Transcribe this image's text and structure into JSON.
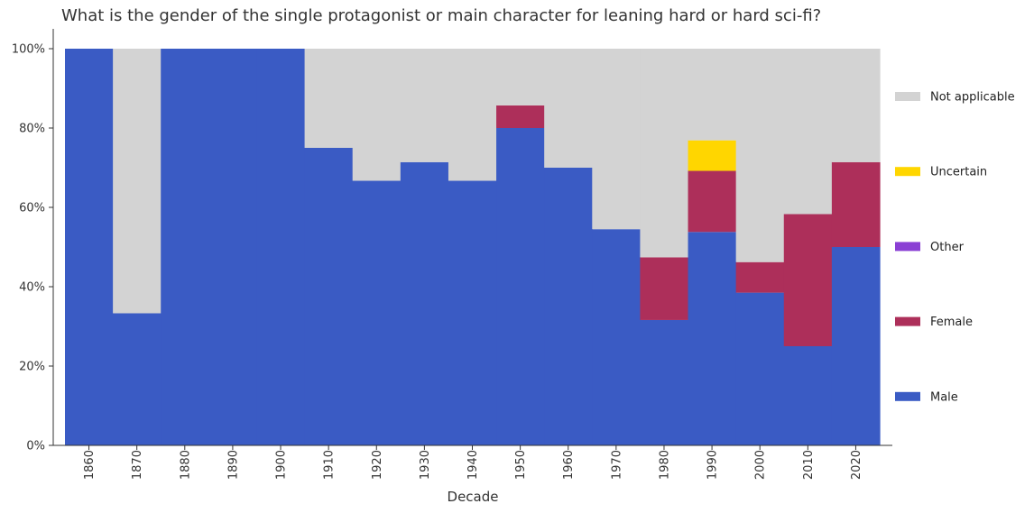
{
  "chart_data": {
    "type": "bar",
    "stacked": true,
    "percent": true,
    "title": "What is the gender of the single protagonist or main character for leaning hard or hard sci-fi?",
    "xlabel": "Decade",
    "ylabel": "",
    "ylim": [
      0,
      100
    ],
    "y_ticks": [
      "0%",
      "20%",
      "40%",
      "60%",
      "80%",
      "100%"
    ],
    "categories": [
      "1860",
      "1870",
      "1880",
      "1890",
      "1900",
      "1910",
      "1920",
      "1930",
      "1940",
      "1950",
      "1960",
      "1970",
      "1980",
      "1990",
      "2000",
      "2010",
      "2020"
    ],
    "series": [
      {
        "name": "Male",
        "color": "#3a5bc4",
        "values": [
          100,
          33.3,
          100,
          100,
          100,
          75,
          66.7,
          71.4,
          66.7,
          80,
          70,
          54.5,
          31.6,
          53.8,
          38.5,
          25,
          50
        ]
      },
      {
        "name": "Female",
        "color": "#ad2f5a",
        "values": [
          0,
          0,
          0,
          0,
          0,
          0,
          0,
          0,
          0,
          5.7,
          0,
          0,
          15.8,
          15.4,
          7.7,
          33.3,
          21.4
        ]
      },
      {
        "name": "Other",
        "color": "#8a3fd4",
        "values": [
          0,
          0,
          0,
          0,
          0,
          0,
          0,
          0,
          0,
          0,
          0,
          0,
          0,
          0,
          0,
          0,
          0
        ]
      },
      {
        "name": "Uncertain",
        "color": "#ffd600",
        "values": [
          0,
          0,
          0,
          0,
          0,
          0,
          0,
          0,
          0,
          0,
          0,
          0,
          0,
          7.7,
          0,
          0,
          0
        ]
      },
      {
        "name": "Not applicable",
        "color": "#d3d3d3",
        "values": [
          0,
          66.7,
          0,
          0,
          0,
          25,
          33.3,
          28.6,
          33.3,
          14.3,
          30,
          45.5,
          52.6,
          23.1,
          53.8,
          41.7,
          28.6
        ]
      }
    ],
    "legend_order": [
      "Not applicable",
      "Uncertain",
      "Other",
      "Female",
      "Male"
    ],
    "legend_position": "right",
    "grid": false
  }
}
